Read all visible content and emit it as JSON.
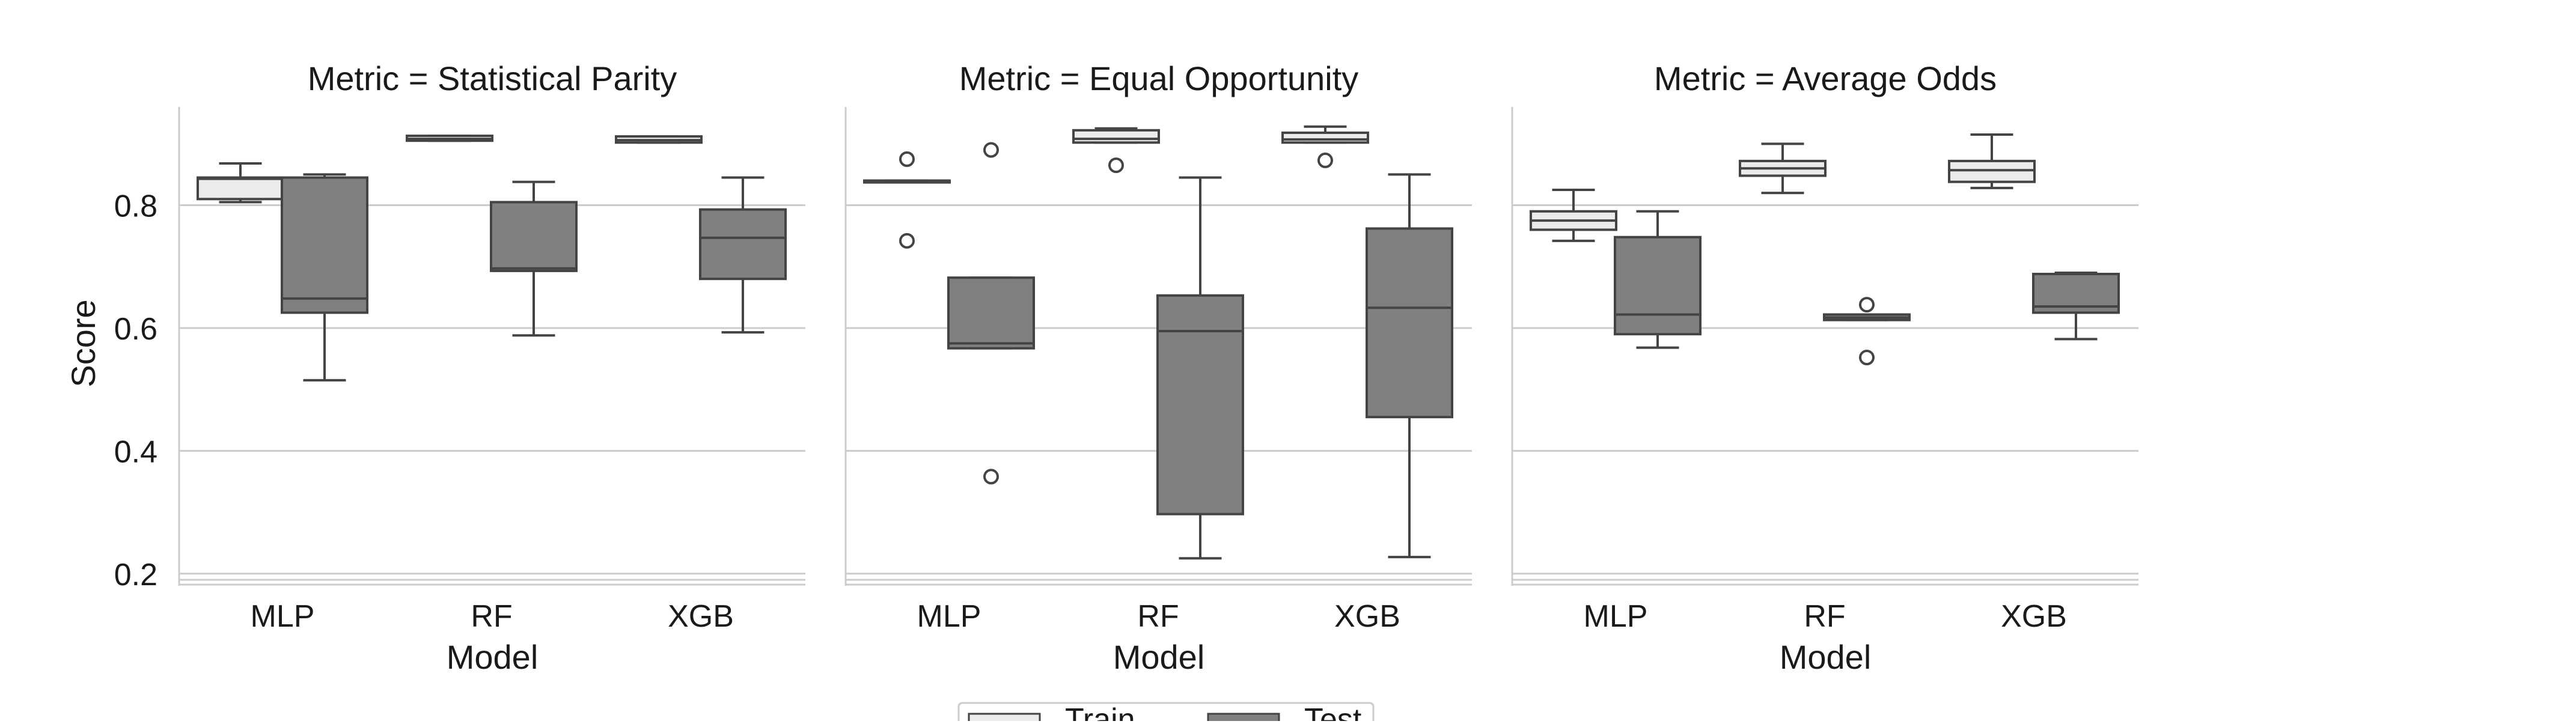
{
  "chart_data": {
    "type": "box",
    "layout": "facet-columns",
    "facet_variable": "Metric",
    "xlabel": "Model",
    "ylabel": "Score",
    "yticks": [
      0.2,
      0.4,
      0.6,
      0.8
    ],
    "ylim": [
      0.19,
      0.96
    ],
    "categories": [
      "MLP",
      "RF",
      "XGB"
    ],
    "grid": "horizontal",
    "legend": {
      "placement": "bottom-center",
      "entries": [
        {
          "name": "Train",
          "color": "#ebebeb"
        },
        {
          "name": "Test",
          "color": "#808080"
        }
      ]
    },
    "panels": [
      {
        "title": "Metric = Statistical Parity",
        "series": [
          {
            "name": "Train",
            "boxes": [
              {
                "category": "MLP",
                "whisker_low": 0.805,
                "q1": 0.81,
                "median": 0.843,
                "q3": 0.845,
                "whisker_high": 0.868,
                "outliers": []
              },
              {
                "category": "RF",
                "whisker_low": 0.905,
                "q1": 0.905,
                "median": 0.908,
                "q3": 0.913,
                "whisker_high": 0.913,
                "outliers": []
              },
              {
                "category": "XGB",
                "whisker_low": 0.902,
                "q1": 0.902,
                "median": 0.906,
                "q3": 0.912,
                "whisker_high": 0.912,
                "outliers": []
              }
            ]
          },
          {
            "name": "Test",
            "boxes": [
              {
                "category": "MLP",
                "whisker_low": 0.515,
                "q1": 0.625,
                "median": 0.648,
                "q3": 0.845,
                "whisker_high": 0.85,
                "outliers": []
              },
              {
                "category": "RF",
                "whisker_low": 0.588,
                "q1": 0.693,
                "median": 0.697,
                "q3": 0.805,
                "whisker_high": 0.838,
                "outliers": []
              },
              {
                "category": "XGB",
                "whisker_low": 0.593,
                "q1": 0.68,
                "median": 0.747,
                "q3": 0.793,
                "whisker_high": 0.845,
                "outliers": []
              }
            ]
          }
        ]
      },
      {
        "title": "Metric = Equal Opportunity",
        "series": [
          {
            "name": "Train",
            "boxes": [
              {
                "category": "MLP",
                "whisker_low": 0.84,
                "q1": 0.84,
                "median": 0.84,
                "q3": 0.84,
                "whisker_high": 0.84,
                "outliers": [
                  0.875,
                  0.742
                ]
              },
              {
                "category": "RF",
                "whisker_low": 0.902,
                "q1": 0.902,
                "median": 0.908,
                "q3": 0.922,
                "whisker_high": 0.925,
                "outliers": [
                  0.865
                ]
              },
              {
                "category": "XGB",
                "whisker_low": 0.902,
                "q1": 0.902,
                "median": 0.907,
                "q3": 0.918,
                "whisker_high": 0.928,
                "outliers": [
                  0.873
                ]
              }
            ]
          },
          {
            "name": "Test",
            "boxes": [
              {
                "category": "MLP",
                "whisker_low": 0.567,
                "q1": 0.567,
                "median": 0.575,
                "q3": 0.682,
                "whisker_high": 0.682,
                "outliers": [
                  0.89,
                  0.358
                ]
              },
              {
                "category": "RF",
                "whisker_low": 0.225,
                "q1": 0.297,
                "median": 0.595,
                "q3": 0.653,
                "whisker_high": 0.845,
                "outliers": []
              },
              {
                "category": "XGB",
                "whisker_low": 0.227,
                "q1": 0.455,
                "median": 0.633,
                "q3": 0.762,
                "whisker_high": 0.85,
                "outliers": []
              }
            ]
          }
        ]
      },
      {
        "title": "Metric = Average Odds",
        "series": [
          {
            "name": "Train",
            "boxes": [
              {
                "category": "MLP",
                "whisker_low": 0.742,
                "q1": 0.76,
                "median": 0.775,
                "q3": 0.79,
                "whisker_high": 0.825,
                "outliers": []
              },
              {
                "category": "RF",
                "whisker_low": 0.82,
                "q1": 0.848,
                "median": 0.86,
                "q3": 0.872,
                "whisker_high": 0.9,
                "outliers": []
              },
              {
                "category": "XGB",
                "whisker_low": 0.828,
                "q1": 0.838,
                "median": 0.857,
                "q3": 0.872,
                "whisker_high": 0.915,
                "outliers": []
              }
            ]
          },
          {
            "name": "Test",
            "boxes": [
              {
                "category": "MLP",
                "whisker_low": 0.568,
                "q1": 0.59,
                "median": 0.622,
                "q3": 0.748,
                "whisker_high": 0.79,
                "outliers": []
              },
              {
                "category": "RF",
                "whisker_low": 0.613,
                "q1": 0.613,
                "median": 0.617,
                "q3": 0.622,
                "whisker_high": 0.622,
                "outliers": [
                  0.638,
                  0.552
                ]
              },
              {
                "category": "XGB",
                "whisker_low": 0.582,
                "q1": 0.625,
                "median": 0.635,
                "q3": 0.688,
                "whisker_high": 0.69,
                "outliers": []
              }
            ]
          }
        ]
      }
    ]
  }
}
